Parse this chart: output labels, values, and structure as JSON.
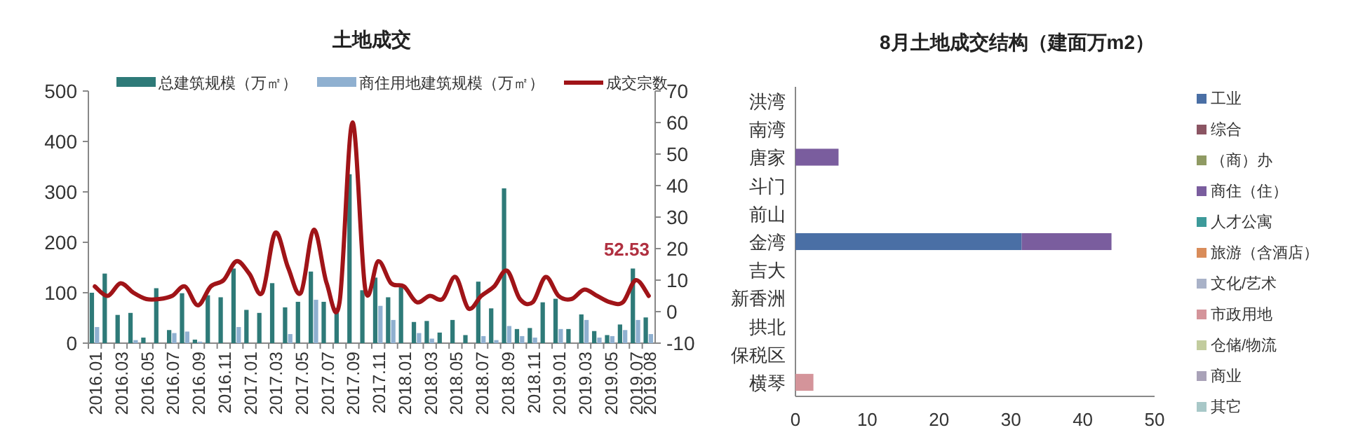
{
  "chart_data": [
    {
      "type": "bar",
      "title": "土地成交",
      "legend": "top",
      "categories": [
        "2016.01",
        null,
        "2016.03",
        null,
        "2016.05",
        null,
        "2016.07",
        null,
        "2016.09",
        null,
        "2016.11",
        null,
        "2017.01",
        null,
        "2017.03",
        null,
        "2017.05",
        null,
        "2017.07",
        null,
        "2017.09",
        null,
        "2017.11",
        null,
        "2018.01",
        null,
        "2018.03",
        null,
        "2018.05",
        null,
        "2018.07",
        null,
        "2018.09",
        null,
        "2018.11",
        null,
        "2019.01",
        null,
        "2019.03",
        null,
        "2019.05",
        null,
        "2019.07",
        "2019.08"
      ],
      "series": [
        {
          "name": "总建筑规模（万㎡）",
          "color": "#2e7a78",
          "values": [
            100,
            138,
            56,
            60,
            11,
            109,
            26,
            99,
            7,
            95,
            91,
            148,
            66,
            60,
            119,
            71,
            82,
            142,
            82,
            70,
            335,
            105,
            130,
            91,
            111,
            42,
            44,
            21,
            46,
            16,
            122,
            69,
            307,
            28,
            30,
            81,
            88,
            28,
            57,
            24,
            16,
            37,
            148,
            51
          ]
        },
        {
          "name": "商住用地建筑规模（万㎡）",
          "color": "#8fb0d0",
          "values": [
            32,
            null,
            null,
            6,
            null,
            null,
            20,
            23,
            3,
            null,
            null,
            32,
            null,
            null,
            null,
            18,
            null,
            86,
            null,
            null,
            null,
            null,
            74,
            46,
            null,
            20,
            9,
            null,
            null,
            null,
            14,
            6,
            34,
            14,
            11,
            null,
            28,
            null,
            46,
            11,
            14,
            26,
            46,
            18
          ]
        },
        {
          "name": "成交宗数",
          "type": "line",
          "axis": "y2",
          "color": "#a01418",
          "values": [
            8,
            5,
            9,
            6,
            4,
            4,
            5,
            8,
            2,
            8,
            10,
            16,
            12,
            6,
            25,
            14,
            6,
            26,
            9,
            3,
            60,
            7,
            16,
            9,
            8,
            3,
            5,
            4,
            11,
            1,
            5,
            8,
            13,
            4,
            3,
            11,
            5,
            4,
            7,
            5,
            3,
            3,
            10,
            5
          ]
        }
      ],
      "ylim": [
        0,
        500
      ],
      "yticks": [
        0,
        100,
        200,
        300,
        400,
        500
      ],
      "y2lim": [
        -10,
        70
      ],
      "y2ticks": [
        -10,
        0,
        10,
        20,
        30,
        40,
        50,
        60,
        70
      ],
      "annotations": [
        "52.53"
      ]
    },
    {
      "type": "bar",
      "orientation": "horizontal",
      "stacked": true,
      "title": "8月土地成交结构（建面万m2）",
      "legend": "right",
      "categories": [
        "洪湾",
        "南湾",
        "唐家",
        "斗门",
        "前山",
        "金湾",
        "吉大",
        "新香洲",
        "拱北",
        "保税区",
        "横琴"
      ],
      "series": [
        {
          "name": "工业",
          "color": "#4a6fa5",
          "values": [
            null,
            null,
            null,
            null,
            null,
            31.5,
            null,
            null,
            null,
            null,
            null
          ]
        },
        {
          "name": "综合",
          "color": "#8b5563",
          "values": [
            null,
            null,
            null,
            null,
            null,
            null,
            null,
            null,
            null,
            null,
            null
          ]
        },
        {
          "name": "（商）办",
          "color": "#8f9a63",
          "values": [
            null,
            null,
            null,
            null,
            null,
            null,
            null,
            null,
            null,
            null,
            null
          ]
        },
        {
          "name": "商住（住）",
          "color": "#7a5d9e",
          "values": [
            null,
            null,
            6,
            null,
            null,
            12.5,
            null,
            null,
            null,
            null,
            null
          ]
        },
        {
          "name": "人才公寓",
          "color": "#3d9a9a",
          "values": [
            null,
            null,
            null,
            null,
            null,
            null,
            null,
            null,
            null,
            null,
            null
          ]
        },
        {
          "name": "旅游（含酒店）",
          "color": "#d98c5a",
          "values": [
            null,
            null,
            null,
            null,
            null,
            null,
            null,
            null,
            null,
            null,
            null
          ]
        },
        {
          "name": "文化/艺术",
          "color": "#a9b2c8",
          "values": [
            null,
            null,
            null,
            null,
            null,
            null,
            null,
            null,
            null,
            null,
            null
          ]
        },
        {
          "name": "市政用地",
          "color": "#d4949a",
          "values": [
            null,
            null,
            null,
            null,
            null,
            null,
            null,
            null,
            null,
            null,
            2.5
          ]
        },
        {
          "name": "仓储/物流",
          "color": "#c2cc9e",
          "values": [
            null,
            null,
            null,
            null,
            null,
            null,
            null,
            null,
            null,
            null,
            null
          ]
        },
        {
          "name": "商业",
          "color": "#a9a2b8",
          "values": [
            null,
            null,
            null,
            null,
            null,
            null,
            null,
            null,
            null,
            null,
            null
          ]
        },
        {
          "name": "其它",
          "color": "#a8c8c8",
          "values": [
            null,
            null,
            null,
            null,
            null,
            null,
            null,
            null,
            null,
            null,
            null
          ]
        }
      ],
      "xlim": [
        0,
        50
      ],
      "xticks": [
        0,
        10,
        20,
        30,
        40,
        50
      ]
    }
  ]
}
